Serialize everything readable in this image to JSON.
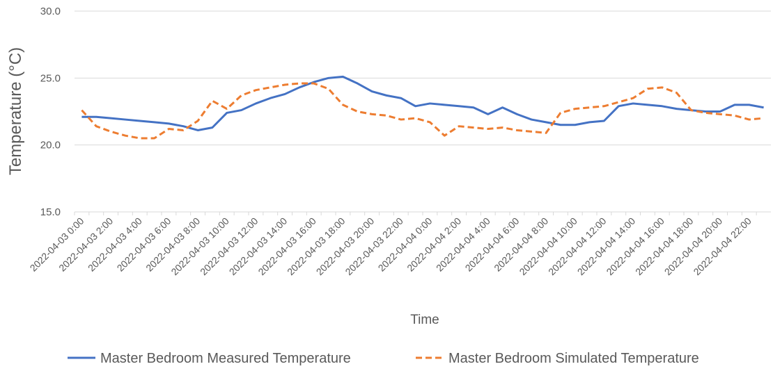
{
  "chart_data": {
    "type": "line",
    "ylabel": "Temperature (°C)",
    "xlabel": "Time",
    "categories": [
      "2022-04-03 0:00",
      null,
      "2022-04-03 2:00",
      null,
      "2022-04-03 4:00",
      null,
      "2022-04-03 6:00",
      null,
      "2022-04-03 8:00",
      null,
      "2022-04-03 10:00",
      null,
      "2022-04-03 12:00",
      null,
      "2022-04-03 14:00",
      null,
      "2022-04-03 16:00",
      null,
      "2022-04-03 18:00",
      null,
      "2022-04-03 20:00",
      null,
      "2022-04-03 22:00",
      null,
      "2022-04-04 0:00",
      null,
      "2022-04-04 2:00",
      null,
      "2022-04-04 4:00",
      null,
      "2022-04-04 6:00",
      null,
      "2022-04-04 8:00",
      null,
      "2022-04-04 10:00",
      null,
      "2022-04-04 12:00",
      null,
      "2022-04-04 14:00",
      null,
      "2022-04-04 16:00",
      null,
      "2022-04-04 18:00",
      null,
      "2022-04-04 20:00",
      null,
      "2022-04-04 22:00",
      null
    ],
    "series": [
      {
        "name": "Master Bedroom Measured Temperature",
        "color": "#4472c4",
        "dash": false,
        "values": [
          22.1,
          22.1,
          22.0,
          21.9,
          21.8,
          21.7,
          21.6,
          21.4,
          21.1,
          21.3,
          22.4,
          22.6,
          23.1,
          23.5,
          23.8,
          24.3,
          24.7,
          25.0,
          25.1,
          24.6,
          24.0,
          23.7,
          23.5,
          22.9,
          23.1,
          23.0,
          22.9,
          22.8,
          22.3,
          22.8,
          22.3,
          21.9,
          21.7,
          21.5,
          21.5,
          21.7,
          21.8,
          22.9,
          23.1,
          23.0,
          22.9,
          22.7,
          22.6,
          22.5,
          22.5,
          23.0,
          23.0,
          22.8
        ]
      },
      {
        "name": "Master Bedroom Simulated Temperature",
        "color": "#ed7d31",
        "dash": true,
        "values": [
          22.6,
          21.4,
          21.0,
          20.7,
          20.5,
          20.5,
          21.2,
          21.1,
          21.8,
          23.3,
          22.7,
          23.7,
          24.1,
          24.3,
          24.5,
          24.6,
          24.6,
          24.2,
          23.0,
          22.5,
          22.3,
          22.2,
          21.9,
          22.0,
          21.7,
          20.7,
          21.4,
          21.3,
          21.2,
          21.3,
          21.1,
          21.0,
          20.9,
          22.4,
          22.7,
          22.8,
          22.9,
          23.2,
          23.5,
          24.2,
          24.3,
          23.9,
          22.6,
          22.4,
          22.3,
          22.2,
          21.9,
          22.0
        ]
      }
    ],
    "ylim": [
      15,
      30
    ],
    "yticks": [
      {
        "value": 15,
        "label": "15.0"
      },
      {
        "value": 20,
        "label": "20.0"
      },
      {
        "value": 25,
        "label": "25.0"
      },
      {
        "value": 30,
        "label": "30.0"
      }
    ],
    "grid": true,
    "legend": "bottom"
  }
}
